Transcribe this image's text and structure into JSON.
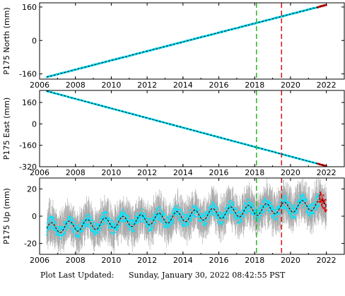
{
  "footer": {
    "label": "Plot Last Updated:",
    "value": "Sunday, January 30, 2022 08:42:55 PST"
  },
  "colors": {
    "data": "#00e6ff",
    "error_bars": "#a8a8a8",
    "model_line": "#000000",
    "recent_points": "#e00000",
    "vline_green": "#22bb22",
    "vline_red": "#dd1111"
  },
  "chart_data": [
    {
      "type": "scatter",
      "ylabel": "P175 North (mm)",
      "xlim": [
        2006,
        2023
      ],
      "ylim": [
        -185,
        180
      ],
      "xticks": [
        2006,
        2008,
        2010,
        2012,
        2014,
        2016,
        2018,
        2020,
        2022
      ],
      "yticks": [
        -160,
        0,
        160
      ],
      "vlines": [
        {
          "x": 2018.1,
          "color": "green",
          "style": "dashed"
        },
        {
          "x": 2019.5,
          "color": "red",
          "style": "dashed"
        }
      ],
      "trend": {
        "x0": 2006.4,
        "y0": -175,
        "x1": 2022.0,
        "y1": 170
      },
      "scatter_half_width": 4,
      "error_half": 3,
      "seasonal_amplitude": 0,
      "red_tail_from": 2021.5
    },
    {
      "type": "scatter",
      "ylabel": "P175 East (mm)",
      "xlim": [
        2006,
        2023
      ],
      "ylim": [
        -320,
        250
      ],
      "xticks": [
        2006,
        2008,
        2010,
        2012,
        2014,
        2016,
        2018,
        2020,
        2022
      ],
      "yticks": [
        -320,
        -160,
        0,
        160
      ],
      "vlines": [
        {
          "x": 2018.1,
          "color": "green",
          "style": "dashed"
        },
        {
          "x": 2019.5,
          "color": "red",
          "style": "dashed"
        }
      ],
      "trend": {
        "x0": 2006.4,
        "y0": 245,
        "x1": 2022.0,
        "y1": -315
      },
      "scatter_half_width": 5,
      "error_half": 4,
      "seasonal_amplitude": 0,
      "red_tail_from": 2021.5
    },
    {
      "type": "scatter",
      "ylabel": "P175 Up (mm)",
      "xlim": [
        2006,
        2023
      ],
      "ylim": [
        -28,
        28
      ],
      "xticks": [
        2006,
        2008,
        2010,
        2012,
        2014,
        2016,
        2018,
        2020,
        2022
      ],
      "yticks": [
        -20,
        0,
        20
      ],
      "vlines": [
        {
          "x": 2018.1,
          "color": "green",
          "style": "dashed"
        },
        {
          "x": 2019.5,
          "color": "red",
          "style": "dashed"
        }
      ],
      "trend": {
        "x0": 2006.4,
        "y0": -9,
        "x1": 2022.0,
        "y1": 9
      },
      "scatter_half_width": 5,
      "error_half": 9,
      "seasonal_amplitude": 4,
      "red_tail_from": 2021.6
    }
  ]
}
